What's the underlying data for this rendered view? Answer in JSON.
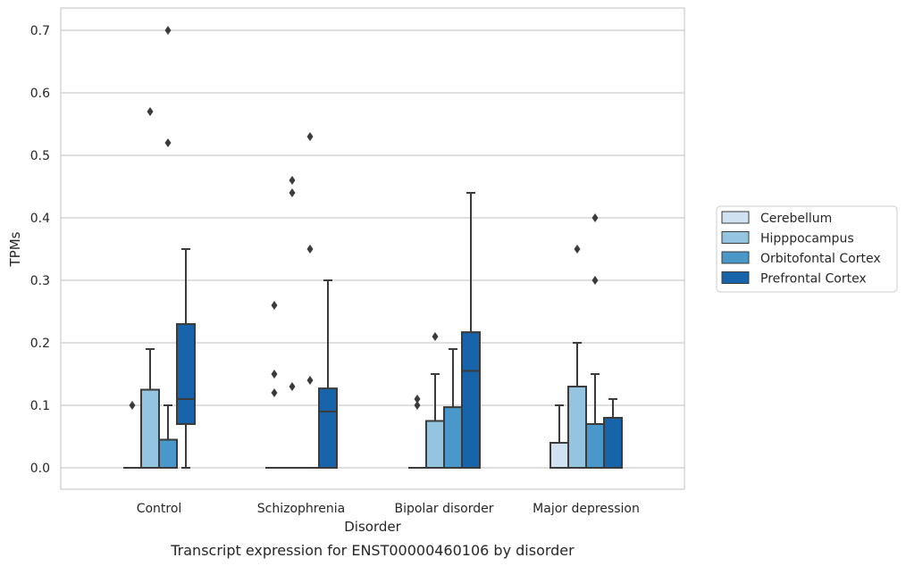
{
  "chart_data": {
    "type": "box",
    "caption": "Transcript expression for ENST00000460106 by disorder",
    "xlabel": "Disorder",
    "ylabel": "TPMs",
    "ylim": [
      -0.035,
      0.735
    ],
    "yticks": [
      0.0,
      0.1,
      0.2,
      0.3,
      0.4,
      0.5,
      0.6,
      0.7
    ],
    "ytick_labels": [
      "0.0",
      "0.1",
      "0.2",
      "0.3",
      "0.4",
      "0.5",
      "0.6",
      "0.7"
    ],
    "categories": [
      "Control",
      "Schizophrenia",
      "Bipolar disorder",
      "Major depression"
    ],
    "grid": "horizontal",
    "legend_position": "right",
    "series": [
      {
        "name": "Cerebellum",
        "color": "#d0e1f2",
        "boxes": [
          {
            "whisker_low": 0.0,
            "q1": 0.0,
            "median": 0.0,
            "q3": 0.0,
            "whisker_high": 0.0,
            "outliers": [
              0.1
            ]
          },
          {
            "whisker_low": 0.0,
            "q1": 0.0,
            "median": 0.0,
            "q3": 0.0,
            "whisker_high": 0.0,
            "outliers": [
              0.12,
              0.15,
              0.26
            ]
          },
          {
            "whisker_low": 0.0,
            "q1": 0.0,
            "median": 0.0,
            "q3": 0.0,
            "whisker_high": 0.0,
            "outliers": [
              0.1,
              0.11
            ]
          },
          {
            "whisker_low": 0.0,
            "q1": 0.0,
            "median": 0.0,
            "q3": 0.04,
            "whisker_high": 0.1,
            "outliers": []
          }
        ]
      },
      {
        "name": "Hipppocampus",
        "color": "#94c4df",
        "boxes": [
          {
            "whisker_low": 0.0,
            "q1": 0.0,
            "median": 0.0,
            "q3": 0.125,
            "whisker_high": 0.19,
            "outliers": [
              0.57
            ]
          },
          {
            "whisker_low": 0.0,
            "q1": 0.0,
            "median": 0.0,
            "q3": 0.0,
            "whisker_high": 0.0,
            "outliers": [
              0.13,
              0.44,
              0.46
            ]
          },
          {
            "whisker_low": 0.0,
            "q1": 0.0,
            "median": 0.0,
            "q3": 0.075,
            "whisker_high": 0.15,
            "outliers": [
              0.21
            ]
          },
          {
            "whisker_low": 0.0,
            "q1": 0.0,
            "median": 0.0,
            "q3": 0.13,
            "whisker_high": 0.2,
            "outliers": [
              0.35
            ]
          }
        ]
      },
      {
        "name": "Orbitofontal Cortex",
        "color": "#4a98c9",
        "boxes": [
          {
            "whisker_low": 0.0,
            "q1": 0.0,
            "median": 0.0,
            "q3": 0.045,
            "whisker_high": 0.1,
            "outliers": [
              0.52,
              0.7
            ]
          },
          {
            "whisker_low": 0.0,
            "q1": 0.0,
            "median": 0.0,
            "q3": 0.0,
            "whisker_high": 0.0,
            "outliers": [
              0.14,
              0.35,
              0.53
            ]
          },
          {
            "whisker_low": 0.0,
            "q1": 0.0,
            "median": 0.0,
            "q3": 0.097,
            "whisker_high": 0.19,
            "outliers": []
          },
          {
            "whisker_low": 0.0,
            "q1": 0.0,
            "median": 0.0,
            "q3": 0.07,
            "whisker_high": 0.15,
            "outliers": [
              0.3,
              0.4
            ]
          }
        ]
      },
      {
        "name": "Prefrontal Cortex",
        "color": "#1764ab",
        "boxes": [
          {
            "whisker_low": 0.0,
            "q1": 0.07,
            "median": 0.11,
            "q3": 0.23,
            "whisker_high": 0.35,
            "outliers": []
          },
          {
            "whisker_low": 0.0,
            "q1": 0.0,
            "median": 0.09,
            "q3": 0.127,
            "whisker_high": 0.3,
            "outliers": []
          },
          {
            "whisker_low": 0.0,
            "q1": 0.0,
            "median": 0.155,
            "q3": 0.217,
            "whisker_high": 0.44,
            "outliers": []
          },
          {
            "whisker_low": 0.0,
            "q1": 0.0,
            "median": 0.0,
            "q3": 0.08,
            "whisker_high": 0.11,
            "outliers": []
          }
        ]
      }
    ]
  }
}
